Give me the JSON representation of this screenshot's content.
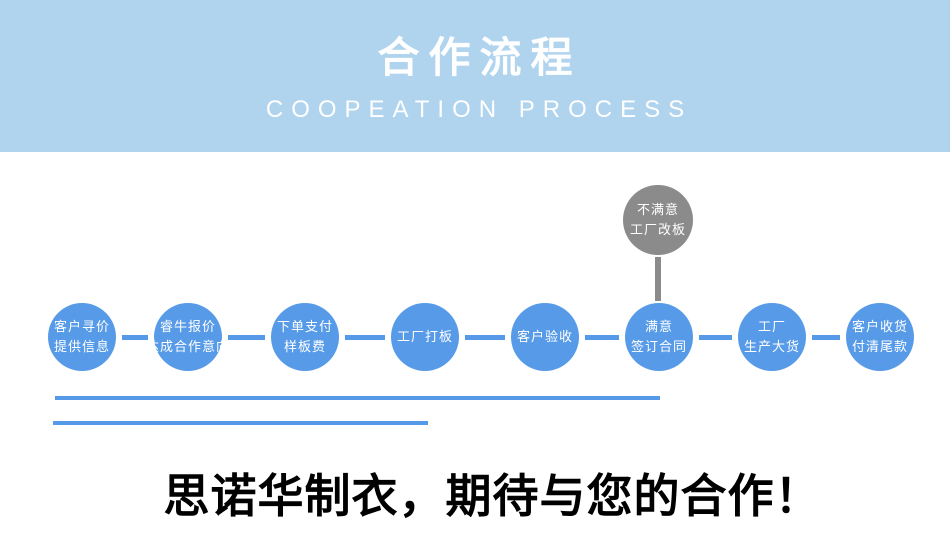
{
  "header": {
    "title": "合作流程",
    "subtitle": "COOPEATION PROCESS"
  },
  "process": {
    "steps": [
      {
        "lines": [
          "客户寻价",
          "提供信息"
        ]
      },
      {
        "lines": [
          "睿牛报价",
          "达成合作意向"
        ]
      },
      {
        "lines": [
          "下单支付",
          "样板费"
        ]
      },
      {
        "lines": [
          "工厂打板"
        ]
      },
      {
        "lines": [
          "客户验收"
        ]
      },
      {
        "lines": [
          "满意",
          "签订合同"
        ]
      },
      {
        "lines": [
          "工厂",
          "生产大货"
        ]
      },
      {
        "lines": [
          "客户收货",
          "付清尾款"
        ]
      }
    ],
    "alternate": {
      "lines": [
        "不满意",
        "工厂改板"
      ]
    }
  },
  "footer": {
    "slogan": "思诺华制衣，期待与您的合作！"
  },
  "colors": {
    "band": "#b0d3ee",
    "node_blue": "#579be8",
    "node_gray": "#8b8b8b",
    "line_blue": "#5599e8",
    "text_white": "#ffffff",
    "slogan_black": "#000000"
  }
}
